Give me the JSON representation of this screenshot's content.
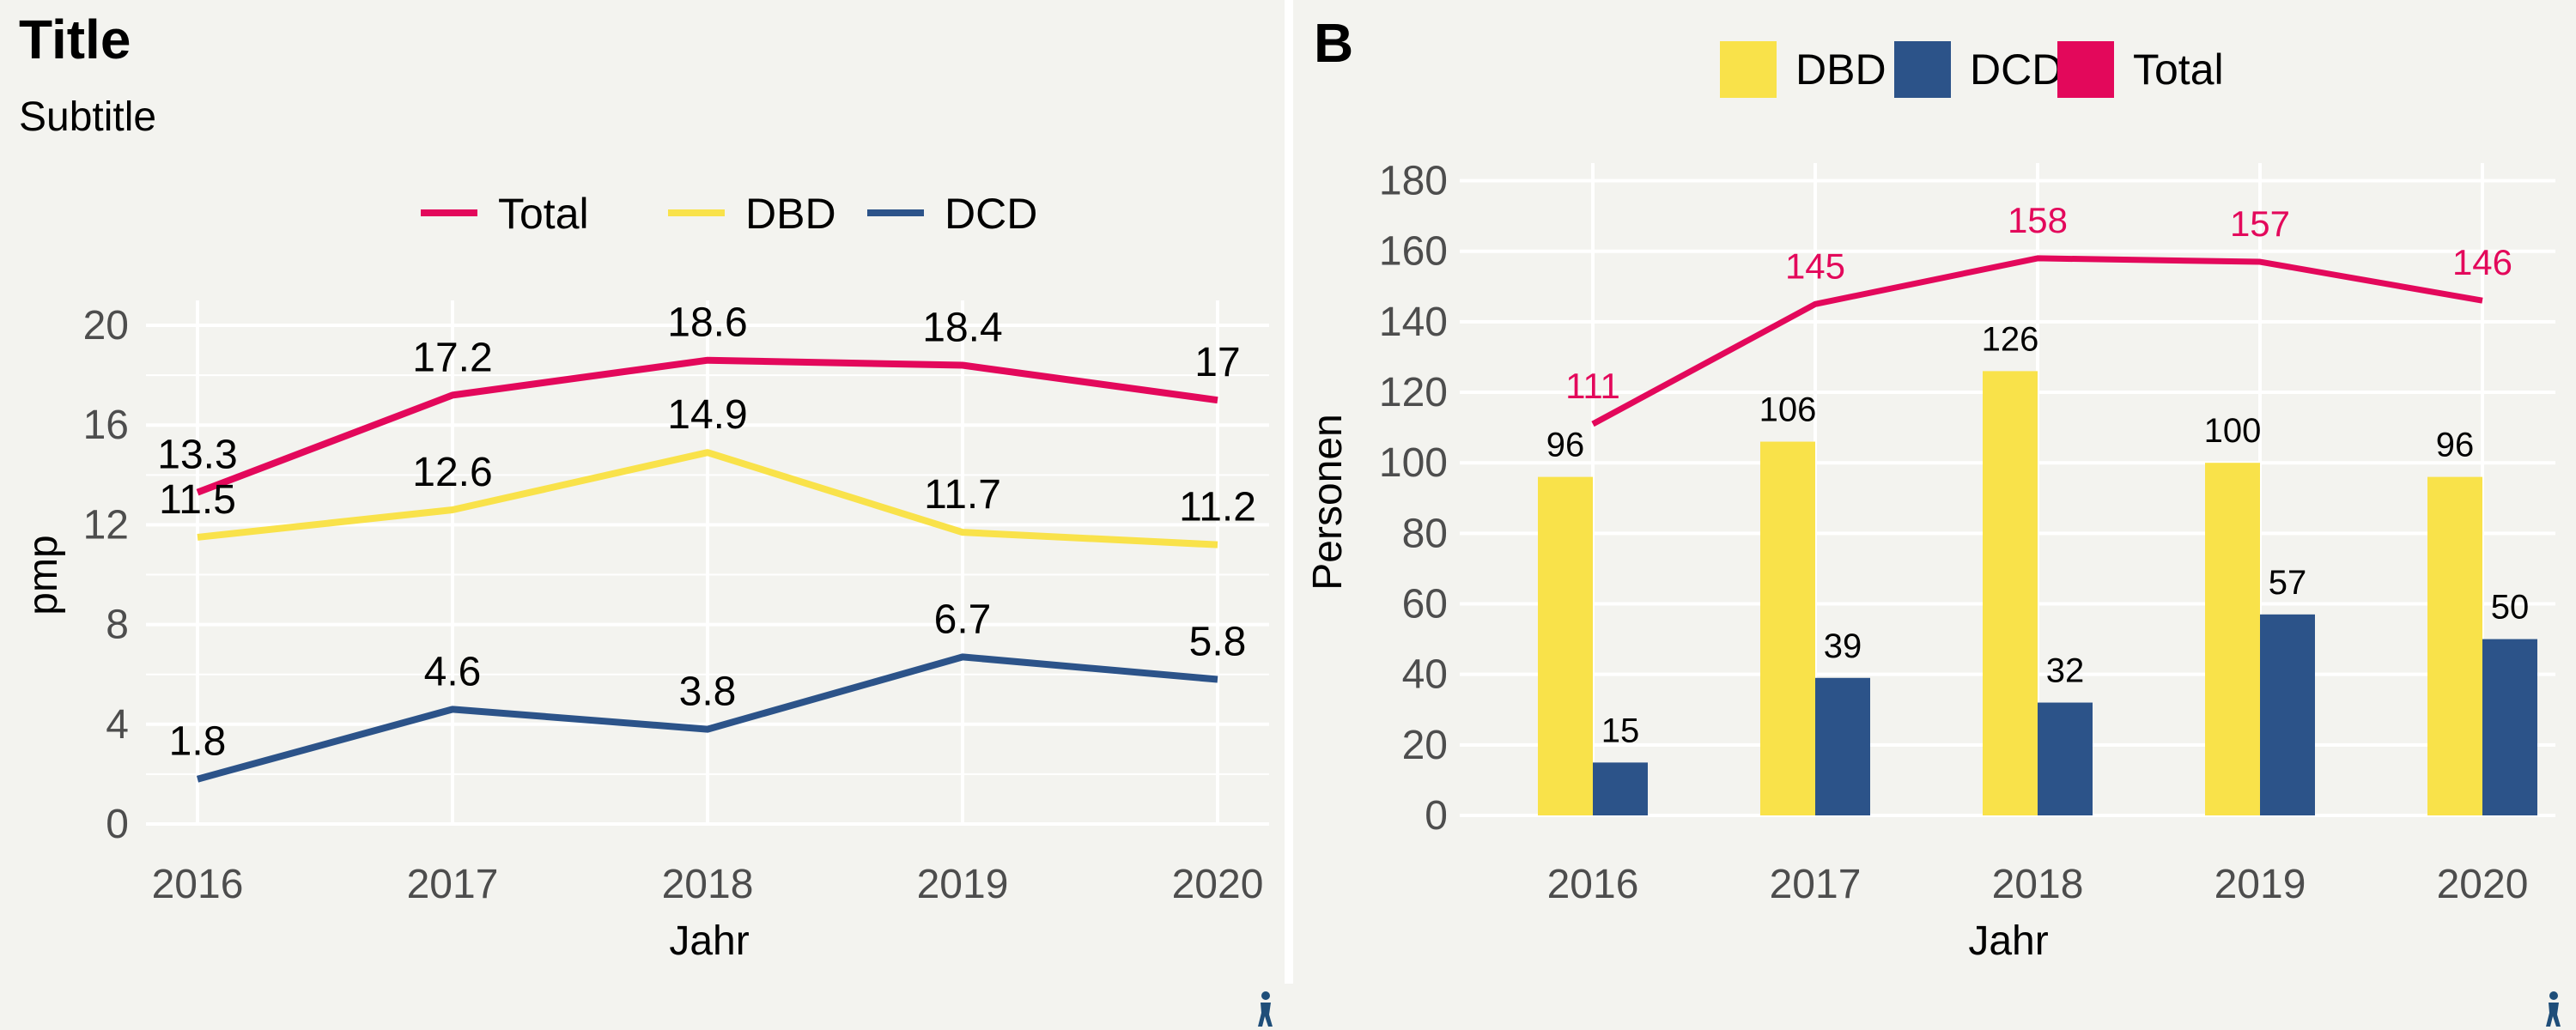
{
  "panelA": {
    "title": "Title",
    "subtitle": "Subtitle",
    "chart_data": {
      "type": "line",
      "x": [
        2016,
        2017,
        2018,
        2019,
        2020
      ],
      "series": [
        {
          "name": "Total",
          "color": "#e3085b",
          "values": [
            13.3,
            17.2,
            18.6,
            18.4,
            17
          ]
        },
        {
          "name": "DBD",
          "color": "#f9e24a",
          "values": [
            11.5,
            12.6,
            14.9,
            11.7,
            11.2
          ]
        },
        {
          "name": "DCD",
          "color": "#2c5389",
          "values": [
            1.8,
            4.6,
            3.8,
            6.7,
            5.8
          ]
        }
      ],
      "xlabel": "Jahr",
      "ylabel": "pmp",
      "ylim": [
        0,
        21
      ],
      "yticks": [
        0,
        4,
        8,
        12,
        16,
        20
      ],
      "grid": true,
      "legend_position": "top"
    }
  },
  "panelB": {
    "tag": "B",
    "chart_data": {
      "type": "bar",
      "categories": [
        "2016",
        "2017",
        "2018",
        "2019",
        "2020"
      ],
      "series": [
        {
          "name": "DBD",
          "color": "#f9e24a",
          "values": [
            96,
            106,
            126,
            100,
            96
          ]
        },
        {
          "name": "DCD",
          "color": "#2c5389",
          "values": [
            15,
            39,
            32,
            57,
            50
          ]
        },
        {
          "name": "Total",
          "color": "#e3085b",
          "type": "line",
          "values": [
            111,
            145,
            158,
            157,
            146
          ]
        }
      ],
      "xlabel": "Jahr",
      "ylabel": "Personen",
      "ylim": [
        0,
        185
      ],
      "yticks": [
        0,
        20,
        40,
        60,
        80,
        100,
        120,
        140,
        160,
        180
      ],
      "grid": true,
      "legend_position": "top"
    }
  }
}
